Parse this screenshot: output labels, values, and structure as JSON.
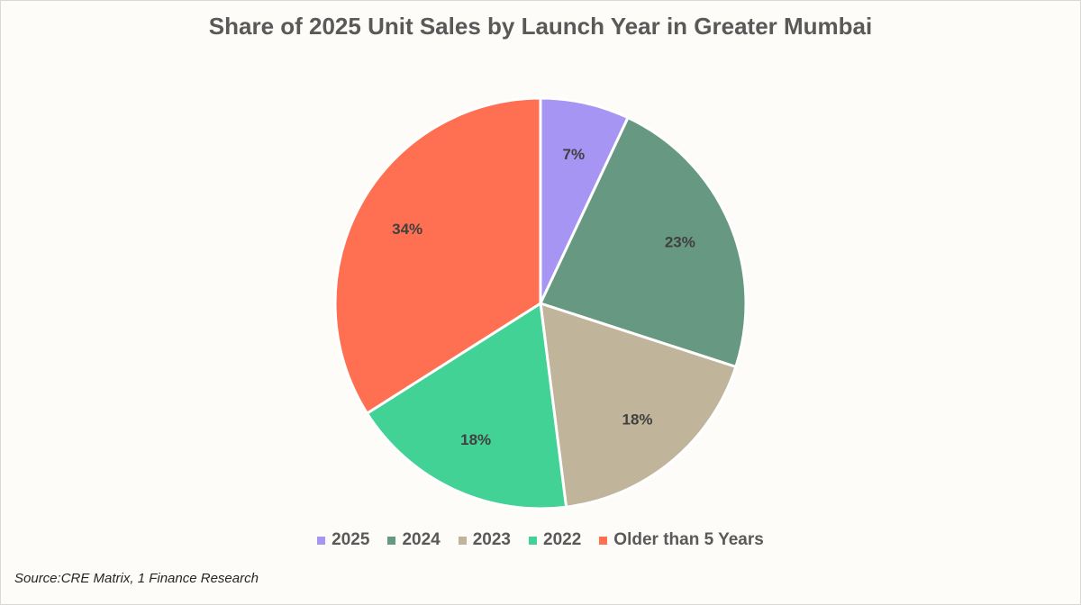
{
  "chart_data": {
    "type": "pie",
    "title": "Share of 2025 Unit Sales by Launch Year in Greater Mumbai",
    "categories": [
      "2025",
      "2024",
      "2023",
      "2022",
      "Older than 5 Years"
    ],
    "values": [
      7,
      23,
      18,
      18,
      34
    ],
    "data_labels": [
      "7%",
      "23%",
      "18%",
      "18%",
      "34%"
    ],
    "colors": [
      "#a695f2",
      "#669882",
      "#c0b49a",
      "#43d295",
      "#ff7052"
    ],
    "legend_position": "bottom",
    "start_angle": "12 o'clock",
    "direction": "clockwise"
  },
  "source_note": "Source:CRE Matrix, 1 Finance Research"
}
